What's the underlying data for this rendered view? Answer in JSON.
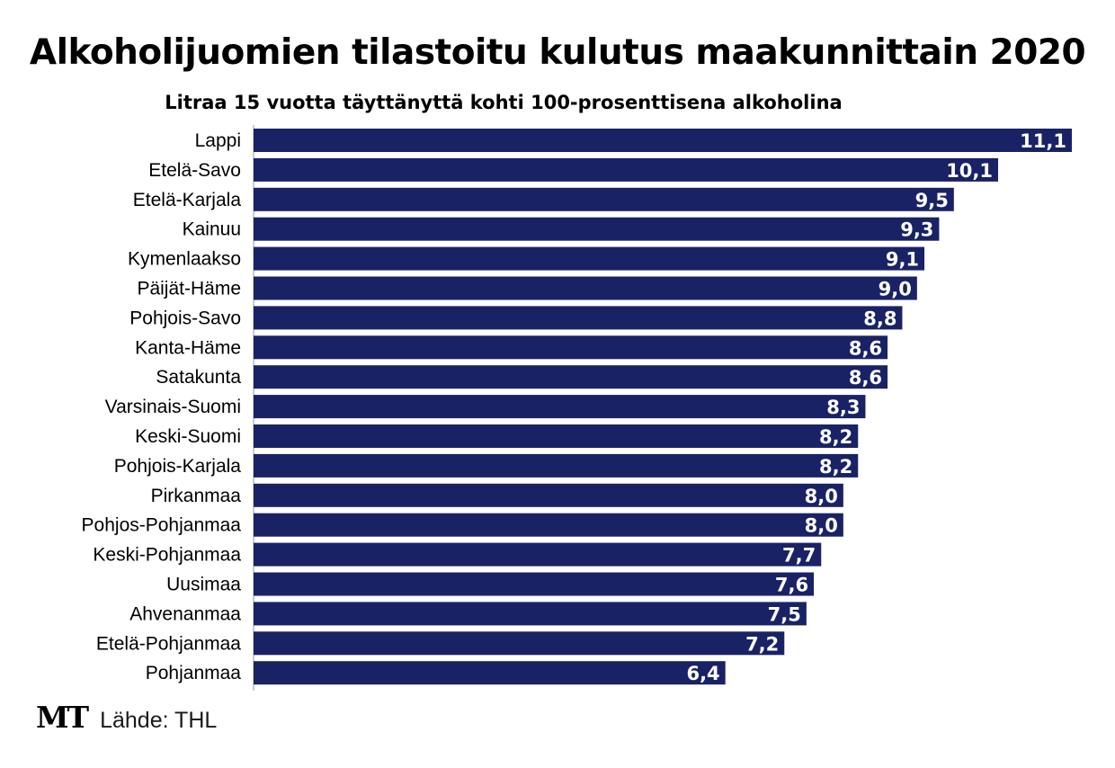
{
  "chart_data": {
    "type": "bar",
    "orientation": "horizontal",
    "title": "Alkoholijuomien tilastoitu kulutus maakunnittain 2020",
    "subtitle": "Litraa 15 vuotta täyttänyttä kohti 100-prosenttisena alkoholina",
    "categories": [
      "Lappi",
      "Etelä-Savo",
      "Etelä-Karjala",
      "Kainuu",
      "Kymenlaakso",
      "Päijät-Häme",
      "Pohjois-Savo",
      "Kanta-Häme",
      "Satakunta",
      "Varsinais-Suomi",
      "Keski-Suomi",
      "Pohjois-Karjala",
      "Pirkanmaa",
      "Pohjos-Pohjanmaa",
      "Keski-Pohjanmaa",
      "Uusimaa",
      "Ahvenanmaa",
      "Etelä-Pohjanmaa",
      "Pohjanmaa"
    ],
    "values": [
      11.1,
      10.1,
      9.5,
      9.3,
      9.1,
      9.0,
      8.8,
      8.6,
      8.6,
      8.3,
      8.2,
      8.2,
      8.0,
      8.0,
      7.7,
      7.6,
      7.5,
      7.2,
      6.4
    ],
    "value_labels": [
      "11,1",
      "10,1",
      "9,5",
      "9,3",
      "9,1",
      "9,0",
      "8,8",
      "8,6",
      "8,6",
      "8,3",
      "8,2",
      "8,2",
      "8,0",
      "8,0",
      "7,7",
      "7,6",
      "7,5",
      "7,2",
      "6,4"
    ],
    "xlim": [
      0,
      11.1
    ],
    "bar_color": "#1a2266",
    "label_color": "#ffffff"
  },
  "footer": {
    "logo": "MT",
    "source": "Lähde: THL"
  }
}
